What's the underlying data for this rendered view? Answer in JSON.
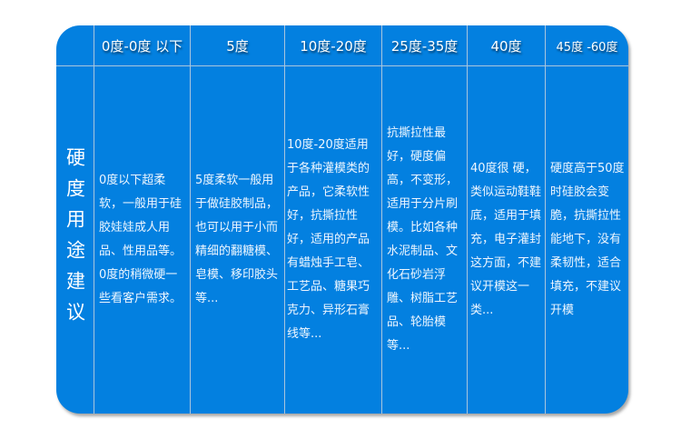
{
  "headers": [
    "0度-0度 以下",
    "5度",
    "10度-20度",
    "25度-35度",
    "40度",
    "45度 -60度"
  ],
  "row_label": "硬度用途建议",
  "cells": [
    "0度以下超柔软，一般用于硅胶娃娃成人用品、性用品等。0度的稍微硬一些看客户需求。",
    "5度柔软一般用于做硅胶制品，也可以用于小而精细的翻糖模、皂模、移印胶头等...",
    "10度-20度适用于各种灌模类的 产品，它柔软性好，抗撕拉性好，适用的产品有蜡烛手工皂、工艺品、糖果巧克力、异形石膏线等...",
    "抗撕拉性最好，硬度偏高，不变形，适用于分片刷模。比如各种水泥制品、文化石砂岩浮雕、树脂工艺品、轮胎模等...",
    "40度很 硬，类似运动鞋鞋底，适用于填充，电子灌封这方面，不建议开模这一类...",
    "硬度高于50度时硅胶会变脆，抗撕拉性能地下，没有柔韧性，适合填充，不建议开模"
  ],
  "colors": {
    "table_bg": "#0380e0",
    "grid": "#a9c6dd",
    "text": "#ffffff"
  }
}
